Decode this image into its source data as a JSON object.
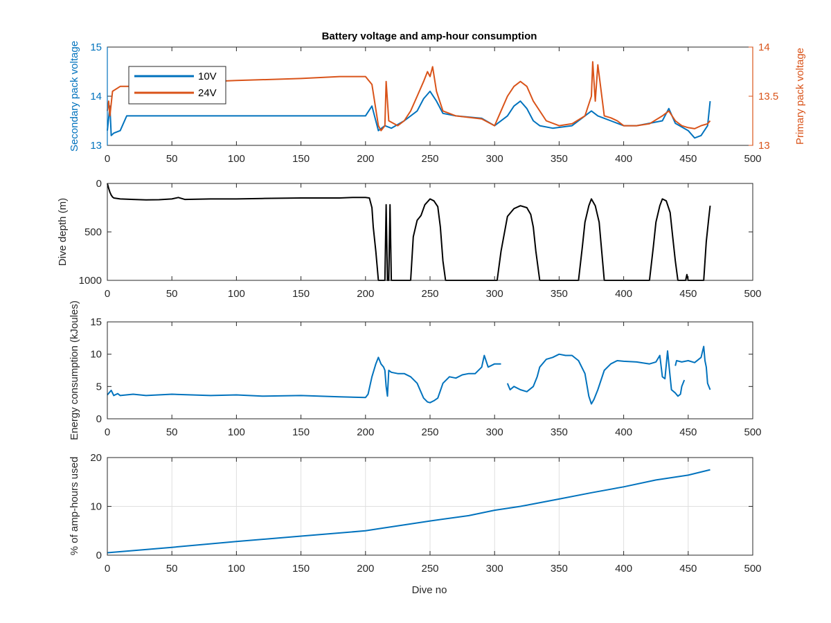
{
  "chart_data": [
    {
      "type": "line",
      "title": "Battery voltage and amp-hour consumption",
      "xlabel": "",
      "ylabel_left": "Secondary pack voltage",
      "ylabel_right": "Primary pack voltage",
      "xlim": [
        0,
        500
      ],
      "ylim_left": [
        13,
        15
      ],
      "ylim_right": [
        13,
        14
      ],
      "xticks": [
        "0",
        "50",
        "100",
        "150",
        "200",
        "250",
        "300",
        "350",
        "400",
        "450",
        "500"
      ],
      "yticks_left": [
        "13",
        "14",
        "15"
      ],
      "yticks_right": [
        "13",
        "13.5",
        "14"
      ],
      "grid": false,
      "legend": "top-left",
      "colors": {
        "10V": "#0072BD",
        "24V": "#D95319"
      },
      "series": [
        {
          "name": "10V",
          "axis": "left",
          "x": [
            0,
            2,
            3,
            5,
            10,
            15,
            20,
            50,
            100,
            150,
            200,
            205,
            210,
            215,
            220,
            230,
            240,
            245,
            250,
            255,
            260,
            270,
            290,
            300,
            310,
            315,
            320,
            325,
            330,
            335,
            345,
            360,
            370,
            375,
            380,
            390,
            400,
            410,
            420,
            430,
            435,
            440,
            450,
            455,
            460,
            465,
            467
          ],
          "y": [
            13.3,
            13.8,
            13.2,
            13.25,
            13.3,
            13.6,
            13.6,
            13.6,
            13.6,
            13.6,
            13.6,
            13.8,
            13.3,
            13.4,
            13.35,
            13.5,
            13.7,
            13.95,
            14.1,
            13.9,
            13.65,
            13.6,
            13.55,
            13.4,
            13.6,
            13.8,
            13.9,
            13.75,
            13.5,
            13.4,
            13.35,
            13.4,
            13.6,
            13.7,
            13.6,
            13.5,
            13.4,
            13.4,
            13.45,
            13.5,
            13.75,
            13.45,
            13.3,
            13.15,
            13.2,
            13.4,
            13.9
          ]
        },
        {
          "name": "24V",
          "axis": "right",
          "x": [
            0,
            1,
            2,
            4,
            10,
            15,
            20,
            30,
            50,
            80,
            100,
            150,
            180,
            200,
            205,
            210,
            212,
            215,
            216,
            218,
            225,
            230,
            235,
            240,
            245,
            248,
            250,
            252,
            255,
            260,
            270,
            290,
            300,
            305,
            310,
            315,
            320,
            325,
            330,
            340,
            350,
            360,
            370,
            375,
            376,
            378,
            380,
            385,
            390,
            395,
            400,
            410,
            420,
            430,
            435,
            440,
            445,
            450,
            455,
            460,
            465,
            467
          ],
          "y": [
            13.35,
            13.45,
            13.3,
            13.55,
            13.6,
            13.6,
            13.6,
            13.6,
            13.63,
            13.65,
            13.66,
            13.68,
            13.7,
            13.7,
            13.62,
            13.2,
            13.15,
            13.2,
            13.65,
            13.25,
            13.2,
            13.25,
            13.35,
            13.5,
            13.65,
            13.75,
            13.7,
            13.8,
            13.55,
            13.35,
            13.3,
            13.27,
            13.2,
            13.35,
            13.5,
            13.6,
            13.65,
            13.6,
            13.45,
            13.25,
            13.2,
            13.22,
            13.3,
            13.5,
            13.85,
            13.45,
            13.82,
            13.3,
            13.28,
            13.25,
            13.2,
            13.2,
            13.22,
            13.3,
            13.35,
            13.25,
            13.2,
            13.18,
            13.17,
            13.2,
            13.22,
            13.25
          ]
        }
      ]
    },
    {
      "type": "line",
      "title": "",
      "xlabel": "",
      "ylabel": "Dive depth (m)",
      "xlim": [
        0,
        500
      ],
      "ylim": [
        0,
        1000
      ],
      "yreverse": true,
      "xticks": [
        "0",
        "50",
        "100",
        "150",
        "200",
        "250",
        "300",
        "350",
        "400",
        "450",
        "500"
      ],
      "yticks": [
        "0",
        "500",
        "1000"
      ],
      "grid": false,
      "series": [
        {
          "x": [
            0,
            1,
            2,
            3,
            4,
            5,
            10,
            20,
            30,
            40,
            50,
            55,
            60,
            80,
            100,
            120,
            150,
            180,
            190,
            200,
            203,
            205,
            206,
            208,
            210,
            212,
            214,
            215,
            216,
            217,
            218,
            219,
            220,
            222,
            224,
            230,
            235,
            237,
            240,
            243,
            246,
            250,
            253,
            256,
            258,
            260,
            262,
            270,
            280,
            300,
            302,
            305,
            310,
            315,
            320,
            325,
            328,
            330,
            332,
            335,
            340,
            350,
            360,
            365,
            368,
            370,
            373,
            375,
            378,
            381,
            383,
            385,
            390,
            400,
            415,
            420,
            423,
            425,
            428,
            430,
            433,
            436,
            438,
            440,
            442,
            444,
            446,
            447,
            448,
            449,
            450,
            455,
            460,
            462,
            464,
            466,
            467
          ],
          "y": [
            0,
            50,
            90,
            120,
            140,
            150,
            160,
            165,
            170,
            168,
            160,
            145,
            165,
            160,
            160,
            155,
            150,
            150,
            145,
            145,
            150,
            250,
            450,
            700,
            1000,
            1000,
            1000,
            1000,
            220,
            1000,
            1000,
            220,
            1000,
            1000,
            1000,
            1000,
            1000,
            550,
            380,
            330,
            220,
            160,
            180,
            240,
            450,
            800,
            1000,
            1000,
            1000,
            1000,
            1000,
            700,
            340,
            260,
            230,
            250,
            320,
            450,
            700,
            1000,
            1000,
            1000,
            1000,
            1000,
            650,
            400,
            230,
            160,
            230,
            400,
            700,
            1000,
            1000,
            1000,
            1000,
            1000,
            650,
            400,
            230,
            160,
            180,
            300,
            550,
            800,
            1000,
            1000,
            1000,
            1000,
            1000,
            940,
            1000,
            1000,
            1000,
            1000,
            600,
            350,
            230
          ]
        }
      ]
    },
    {
      "type": "line",
      "title": "",
      "xlabel": "",
      "ylabel": "Energy consumption (kJoules)",
      "xlim": [
        0,
        500
      ],
      "ylim": [
        0,
        15
      ],
      "xticks": [
        "0",
        "50",
        "100",
        "150",
        "200",
        "250",
        "300",
        "350",
        "400",
        "450",
        "500"
      ],
      "yticks": [
        "0",
        "5",
        "10",
        "15"
      ],
      "grid": false,
      "series": [
        {
          "x": [
            0,
            3,
            5,
            8,
            10,
            20,
            30,
            50,
            80,
            100,
            120,
            150,
            180,
            200,
            202,
            205,
            208,
            210,
            212,
            214,
            215,
            216,
            217,
            218,
            220,
            225,
            230,
            235,
            240,
            245,
            248,
            250,
            253,
            256,
            260,
            265,
            270,
            275,
            280,
            285,
            290,
            292,
            295,
            300,
            305
          ],
          "y": [
            3.7,
            4.4,
            3.6,
            3.9,
            3.6,
            3.8,
            3.6,
            3.8,
            3.6,
            3.7,
            3.5,
            3.6,
            3.4,
            3.3,
            3.8,
            6.5,
            8.5,
            9.5,
            8.5,
            8,
            7.5,
            5,
            3.5,
            7.5,
            7.2,
            7,
            7,
            6.5,
            5.5,
            3.2,
            2.6,
            2.5,
            2.8,
            3.2,
            5.5,
            6.5,
            6.3,
            6.8,
            7,
            7,
            8,
            9.8,
            8,
            8.5,
            8.5
          ]
        },
        {
          "x": [
            310,
            312,
            315,
            320,
            325,
            330,
            333,
            335,
            340,
            345,
            350,
            355,
            360,
            365,
            370,
            373,
            375,
            377,
            380,
            385,
            390,
            395,
            400,
            410,
            420,
            425,
            428,
            430,
            432,
            434,
            436,
            437,
            440,
            442,
            444,
            445,
            447
          ],
          "y": [
            5.5,
            4.5,
            5,
            4.5,
            4.2,
            5,
            6.5,
            8,
            9.2,
            9.5,
            10,
            9.8,
            9.8,
            9,
            7,
            3.5,
            2.3,
            3,
            4.5,
            7.5,
            8.5,
            9,
            8.9,
            8.8,
            8.5,
            8.8,
            9.8,
            6.5,
            6.2,
            10.5,
            6.5,
            4.5,
            4,
            3.5,
            3.8,
            5,
            6
          ]
        },
        {
          "x": [
            440,
            441,
            445,
            450,
            455,
            460,
            462,
            463,
            464,
            465,
            467
          ],
          "y": [
            8.2,
            9,
            8.8,
            9,
            8.7,
            9.5,
            11.2,
            9,
            8,
            5.5,
            4.5
          ]
        }
      ]
    },
    {
      "type": "line",
      "title": "",
      "xlabel": "Dive no",
      "ylabel": "% of amp-hours used",
      "xlim": [
        0,
        500
      ],
      "ylim": [
        0,
        20
      ],
      "xticks": [
        "0",
        "50",
        "100",
        "150",
        "200",
        "250",
        "300",
        "350",
        "400",
        "450",
        "500"
      ],
      "yticks": [
        "0",
        "10",
        "20"
      ],
      "grid": true,
      "series": [
        {
          "x": [
            0,
            50,
            100,
            150,
            200,
            210,
            250,
            280,
            300,
            320,
            330,
            350,
            375,
            400,
            425,
            430,
            450,
            467
          ],
          "y": [
            0.5,
            1.6,
            2.8,
            3.9,
            5.0,
            5.4,
            7.0,
            8.1,
            9.2,
            10.0,
            10.5,
            11.5,
            12.8,
            14.0,
            15.4,
            15.6,
            16.4,
            17.5
          ]
        }
      ]
    }
  ]
}
